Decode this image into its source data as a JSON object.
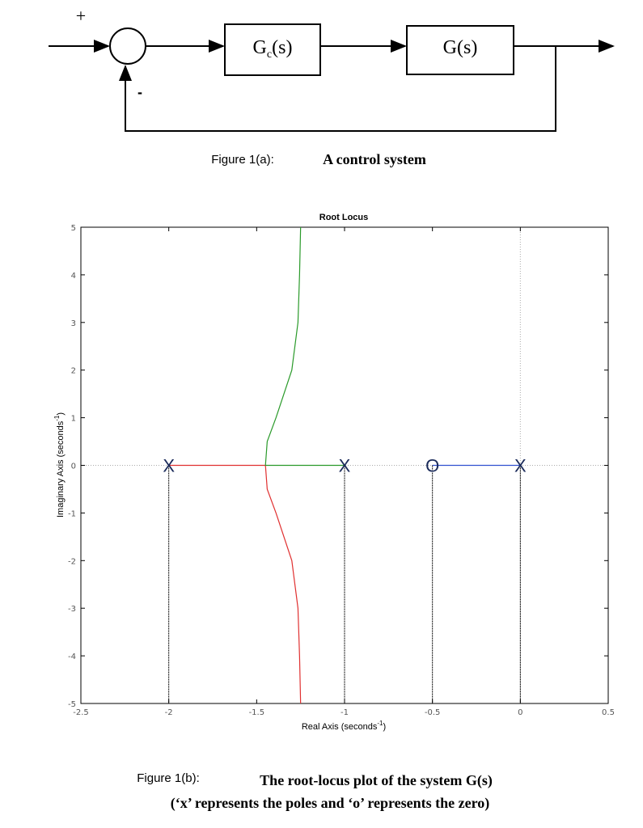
{
  "figure_a": {
    "plus": "+",
    "minus": "-",
    "controller": {
      "main": "G",
      "sub": "c",
      "rest": "(s)"
    },
    "plant": "G(s)",
    "caption_label": "Figure 1(a):",
    "caption_title": "A control system"
  },
  "chart_data": {
    "type": "line",
    "title": "Root Locus",
    "x_label": {
      "text": "Real Axis (seconds",
      "sup": "-1",
      "end": ")"
    },
    "y_label": {
      "text": "Imaginary Axis (seconds",
      "sup": "-1",
      "end": ")"
    },
    "xlim": [
      -2.5,
      0.5
    ],
    "xticks": [
      -2.5,
      -2,
      -1.5,
      -1,
      -0.5,
      0,
      0.5
    ],
    "ylim": [
      -5,
      5
    ],
    "yticks": [
      -5,
      -4,
      -3,
      -2,
      -1,
      0,
      1,
      2,
      3,
      4,
      5
    ],
    "series": [
      {
        "color": "#e03030",
        "x": [
          -2,
          -1.45,
          -1.44,
          -1.39,
          -1.3,
          -1.265,
          -1.256,
          -1.25
        ],
        "y": [
          0,
          0,
          -0.5,
          -1,
          -2,
          -3,
          -4,
          -5
        ]
      },
      {
        "color": "#2a9a2a",
        "x": [
          -1,
          -1.45,
          -1.44,
          -1.39,
          -1.3,
          -1.265,
          -1.256,
          -1.25
        ],
        "y": [
          0,
          0,
          0.5,
          1,
          2,
          3,
          4,
          5
        ]
      },
      {
        "color": "#3050d0",
        "x": [
          0,
          -0.5
        ],
        "y": [
          0,
          0
        ]
      }
    ],
    "markers": [
      {
        "x": -2,
        "y": 0,
        "symbol": "X"
      },
      {
        "x": -1,
        "y": 0,
        "symbol": "X"
      },
      {
        "x": -0.5,
        "y": 0,
        "symbol": "O"
      },
      {
        "x": 0,
        "y": 0,
        "symbol": "X"
      }
    ]
  },
  "caption_b": {
    "label": "Figure 1(b):",
    "title": "The root-locus plot of the system G(s)",
    "note": "(‘x’ represents the poles and ‘o’ represents the zero)"
  }
}
